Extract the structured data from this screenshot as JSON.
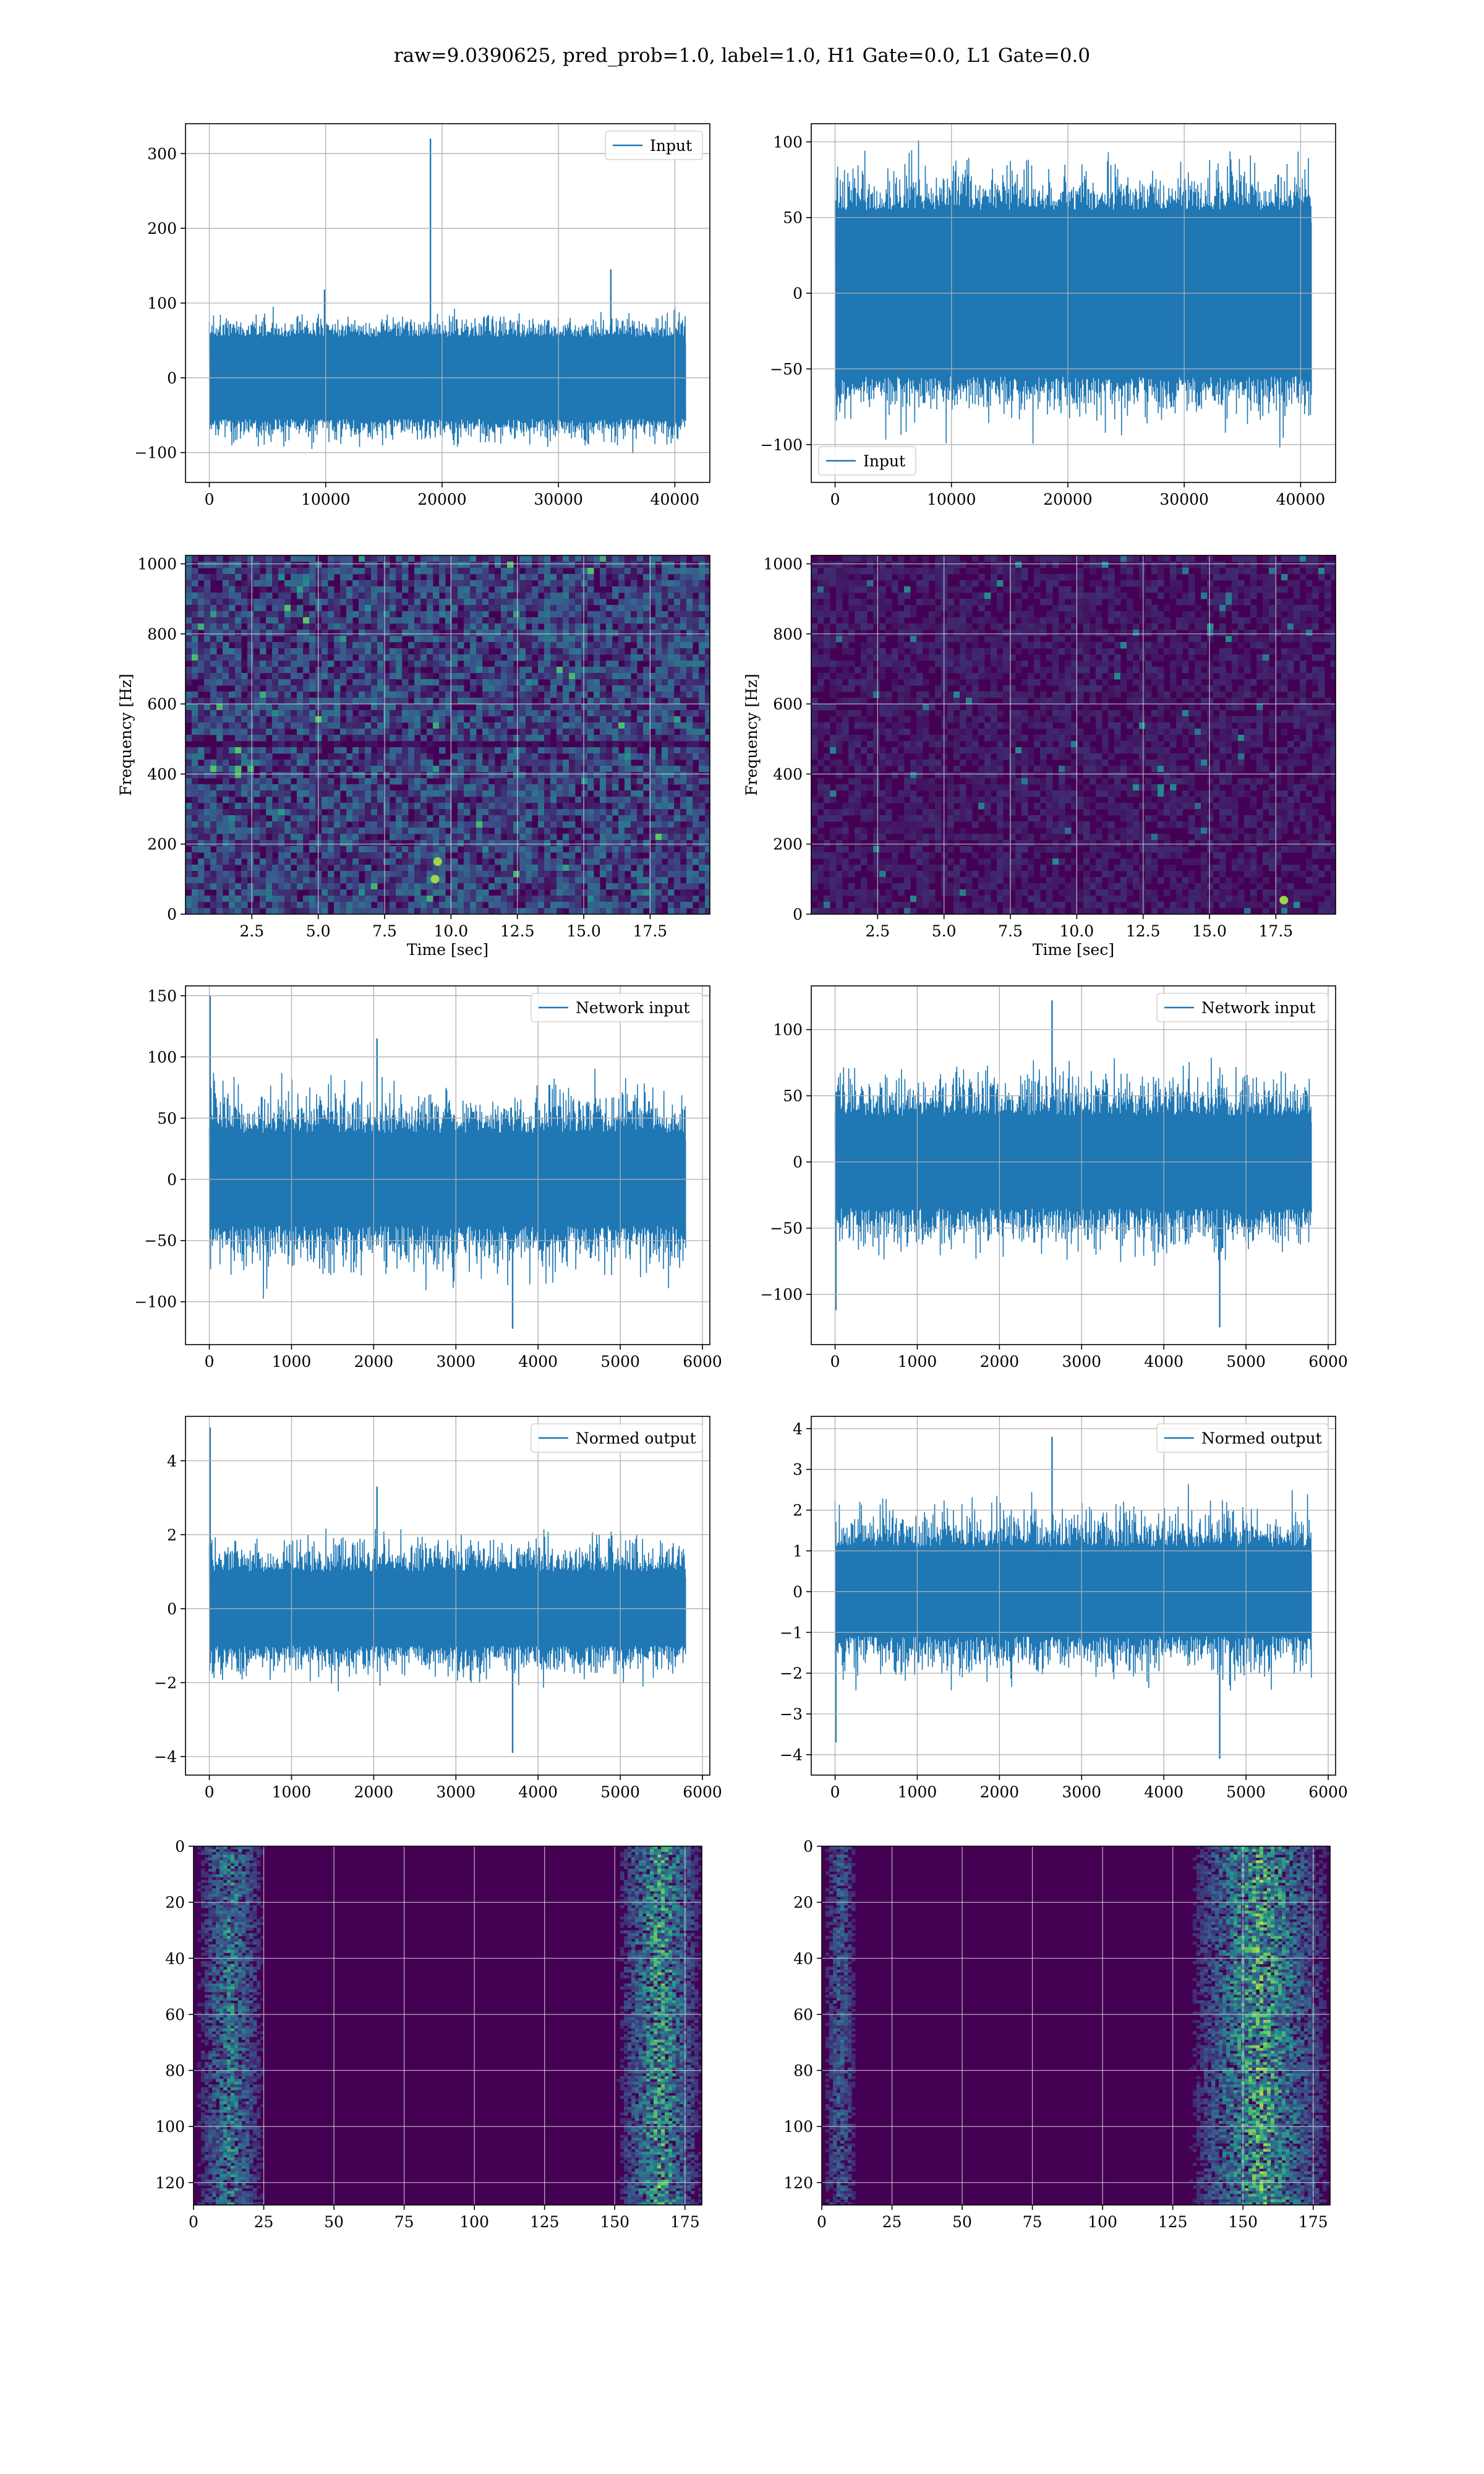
{
  "figure": {
    "suptitle": "raw=9.0390625, pred_prob=1.0, label=1.0, H1 Gate=0.0, L1 Gate=0.0",
    "line_color": "#1f77b4",
    "grid_color": "#b0b0b0",
    "heatmap_colormap": "viridis"
  },
  "chart_data": [
    {
      "id": "input-h1",
      "type": "line",
      "grid": true,
      "legend": "top-right",
      "series": [
        {
          "name": "Input",
          "n_points": 40960,
          "center": 0,
          "typical_amplitude": 55,
          "typical_peak": 100,
          "spikes": [
            {
              "x": 19000,
              "y": 320
            },
            {
              "x": 34500,
              "y": 145
            },
            {
              "x": 9900,
              "y": 118
            }
          ]
        }
      ],
      "xlim": [
        -2048,
        43008
      ],
      "ylim": [
        -140,
        340
      ],
      "xticks": [
        0,
        10000,
        20000,
        30000,
        40000
      ],
      "yticks": [
        -100,
        0,
        100,
        200,
        300
      ],
      "xticklabels": [
        "0",
        "10000",
        "20000",
        "30000",
        "40000"
      ],
      "yticklabels": [
        "−100",
        "0",
        "100",
        "200",
        "300"
      ],
      "xlabel": "",
      "ylabel": ""
    },
    {
      "id": "input-l1",
      "type": "line",
      "grid": true,
      "legend": "bottom-left",
      "series": [
        {
          "name": "Input",
          "n_points": 40960,
          "center": 0,
          "typical_amplitude": 55,
          "typical_peak": 100,
          "spikes": []
        }
      ],
      "xlim": [
        -2048,
        43008
      ],
      "ylim": [
        -125,
        112
      ],
      "xticks": [
        0,
        10000,
        20000,
        30000,
        40000
      ],
      "yticks": [
        -100,
        -50,
        0,
        50,
        100
      ],
      "xticklabels": [
        "0",
        "10000",
        "20000",
        "30000",
        "40000"
      ],
      "yticklabels": [
        "−100",
        "−50",
        "0",
        "50",
        "100"
      ],
      "xlabel": "",
      "ylabel": ""
    },
    {
      "id": "spectrogram-h1",
      "type": "heatmap",
      "grid": true,
      "colormap": "viridis",
      "xlim": [
        0,
        19.75
      ],
      "ylim": [
        0,
        1024
      ],
      "xticks": [
        2.5,
        5.0,
        7.5,
        10.0,
        12.5,
        15.0,
        17.5
      ],
      "yticks": [
        0,
        200,
        400,
        600,
        800,
        1000
      ],
      "xticklabels": [
        "2.5",
        "5.0",
        "7.5",
        "10.0",
        "12.5",
        "15.0",
        "17.5"
      ],
      "yticklabels": [
        "0",
        "200",
        "400",
        "600",
        "800",
        "1000"
      ],
      "xlabel": "Time [sec]",
      "ylabel": "Frequency [Hz]",
      "intensity_level": "medium",
      "dark_band_hz": [
        500
      ],
      "bright_spots": [
        {
          "t": 9.4,
          "f": 100
        },
        {
          "t": 9.5,
          "f": 150
        }
      ]
    },
    {
      "id": "spectrogram-l1",
      "type": "heatmap",
      "grid": true,
      "colormap": "viridis",
      "xlim": [
        0,
        19.75
      ],
      "ylim": [
        0,
        1024
      ],
      "xticks": [
        2.5,
        5.0,
        7.5,
        10.0,
        12.5,
        15.0,
        17.5
      ],
      "yticks": [
        0,
        200,
        400,
        600,
        800,
        1000
      ],
      "xticklabels": [
        "2.5",
        "5.0",
        "7.5",
        "10.0",
        "12.5",
        "15.0",
        "17.5"
      ],
      "yticklabels": [
        "0",
        "200",
        "400",
        "600",
        "800",
        "1000"
      ],
      "xlabel": "Time [sec]",
      "ylabel": "Frequency [Hz]",
      "intensity_level": "low",
      "dark_band_hz": [],
      "bright_spots": [
        {
          "t": 17.8,
          "f": 40
        }
      ]
    },
    {
      "id": "network-input-h1",
      "type": "line",
      "grid": true,
      "legend": "top-right",
      "series": [
        {
          "name": "Network input",
          "n_points": 5800,
          "center": 0,
          "typical_amplitude": 38,
          "typical_peak": 95,
          "spikes": [
            {
              "x": 10,
              "y": 150
            },
            {
              "x": 3690,
              "y": -122
            },
            {
              "x": 2040,
              "y": 115
            }
          ]
        }
      ],
      "xlim": [
        -290,
        6090
      ],
      "ylim": [
        -135,
        158
      ],
      "xticks": [
        0,
        1000,
        2000,
        3000,
        4000,
        5000,
        6000
      ],
      "yticks": [
        -100,
        -50,
        0,
        50,
        100,
        150
      ],
      "xticklabels": [
        "0",
        "1000",
        "2000",
        "3000",
        "4000",
        "5000",
        "6000"
      ],
      "yticklabels": [
        "−100",
        "−50",
        "0",
        "50",
        "100",
        "150"
      ],
      "xlabel": "",
      "ylabel": ""
    },
    {
      "id": "network-input-l1",
      "type": "line",
      "grid": true,
      "legend": "top-right",
      "series": [
        {
          "name": "Network input",
          "n_points": 5800,
          "center": 0,
          "typical_amplitude": 35,
          "typical_peak": 85,
          "spikes": [
            {
              "x": 10,
              "y": -112
            },
            {
              "x": 4680,
              "y": -125
            },
            {
              "x": 2640,
              "y": 122
            }
          ]
        }
      ],
      "xlim": [
        -290,
        6090
      ],
      "ylim": [
        -138,
        133
      ],
      "xticks": [
        0,
        1000,
        2000,
        3000,
        4000,
        5000,
        6000
      ],
      "yticks": [
        -100,
        -50,
        0,
        50,
        100
      ],
      "xticklabels": [
        "0",
        "1000",
        "2000",
        "3000",
        "4000",
        "5000",
        "6000"
      ],
      "yticklabels": [
        "−100",
        "−50",
        "0",
        "50",
        "100"
      ],
      "xlabel": "",
      "ylabel": ""
    },
    {
      "id": "normed-output-h1",
      "type": "line",
      "grid": true,
      "legend": "top-right",
      "series": [
        {
          "name": "Normed output",
          "n_points": 5800,
          "center": 0,
          "typical_amplitude": 1.0,
          "typical_peak": 2.4,
          "spikes": [
            {
              "x": 10,
              "y": 4.9
            },
            {
              "x": 3690,
              "y": -3.9
            },
            {
              "x": 2040,
              "y": 3.3
            }
          ]
        }
      ],
      "xlim": [
        -290,
        6090
      ],
      "ylim": [
        -4.5,
        5.2
      ],
      "xticks": [
        0,
        1000,
        2000,
        3000,
        4000,
        5000,
        6000
      ],
      "yticks": [
        -4,
        -2,
        0,
        2,
        4
      ],
      "xticklabels": [
        "0",
        "1000",
        "2000",
        "3000",
        "4000",
        "5000",
        "6000"
      ],
      "yticklabels": [
        "−4",
        "−2",
        "0",
        "2",
        "4"
      ],
      "xlabel": "",
      "ylabel": ""
    },
    {
      "id": "normed-output-l1",
      "type": "line",
      "grid": true,
      "legend": "top-right",
      "series": [
        {
          "name": "Normed output",
          "n_points": 5800,
          "center": 0,
          "typical_amplitude": 1.1,
          "typical_peak": 2.6,
          "spikes": [
            {
              "x": 10,
              "y": -3.7
            },
            {
              "x": 4680,
              "y": -4.1
            },
            {
              "x": 2640,
              "y": 3.8
            }
          ]
        }
      ],
      "xlim": [
        -290,
        6090
      ],
      "ylim": [
        -4.5,
        4.3
      ],
      "xticks": [
        0,
        1000,
        2000,
        3000,
        4000,
        5000,
        6000
      ],
      "yticks": [
        -4,
        -3,
        -2,
        -1,
        0,
        1,
        2,
        3,
        4
      ],
      "xticklabels": [
        "0",
        "1000",
        "2000",
        "3000",
        "4000",
        "5000",
        "6000"
      ],
      "yticklabels": [
        "−4",
        "−3",
        "−2",
        "−1",
        "0",
        "1",
        "2",
        "3",
        "4"
      ],
      "xlabel": "",
      "ylabel": ""
    },
    {
      "id": "feature-map-h1",
      "type": "heatmap",
      "grid": true,
      "colormap": "viridis",
      "xlim": [
        0,
        181
      ],
      "ylim_inverted": [
        0,
        128
      ],
      "rows": 128,
      "cols": 181,
      "xticks": [
        0,
        25,
        50,
        75,
        100,
        125,
        150,
        175
      ],
      "yticks": [
        0,
        20,
        40,
        60,
        80,
        100,
        120
      ],
      "xticklabels": [
        "0",
        "25",
        "50",
        "75",
        "100",
        "125",
        "150",
        "175"
      ],
      "yticklabels": [
        "0",
        "20",
        "40",
        "60",
        "80",
        "100",
        "120"
      ],
      "xlabel": "",
      "ylabel": "",
      "activity_columns": [
        {
          "from": 0,
          "to": 25,
          "level": 0.45
        },
        {
          "from": 150,
          "to": 181,
          "level": 0.6
        }
      ]
    },
    {
      "id": "feature-map-l1",
      "type": "heatmap",
      "grid": true,
      "colormap": "viridis",
      "xlim": [
        0,
        181
      ],
      "ylim_inverted": [
        0,
        128
      ],
      "rows": 128,
      "cols": 181,
      "xticks": [
        0,
        25,
        50,
        75,
        100,
        125,
        150,
        175
      ],
      "yticks": [
        0,
        20,
        40,
        60,
        80,
        100,
        120
      ],
      "xticklabels": [
        "0",
        "25",
        "50",
        "75",
        "100",
        "125",
        "150",
        "175"
      ],
      "yticklabels": [
        "0",
        "20",
        "40",
        "60",
        "80",
        "100",
        "120"
      ],
      "xlabel": "",
      "ylabel": "",
      "activity_columns": [
        {
          "from": 0,
          "to": 12,
          "level": 0.3
        },
        {
          "from": 130,
          "to": 181,
          "level": 0.65
        }
      ]
    }
  ]
}
